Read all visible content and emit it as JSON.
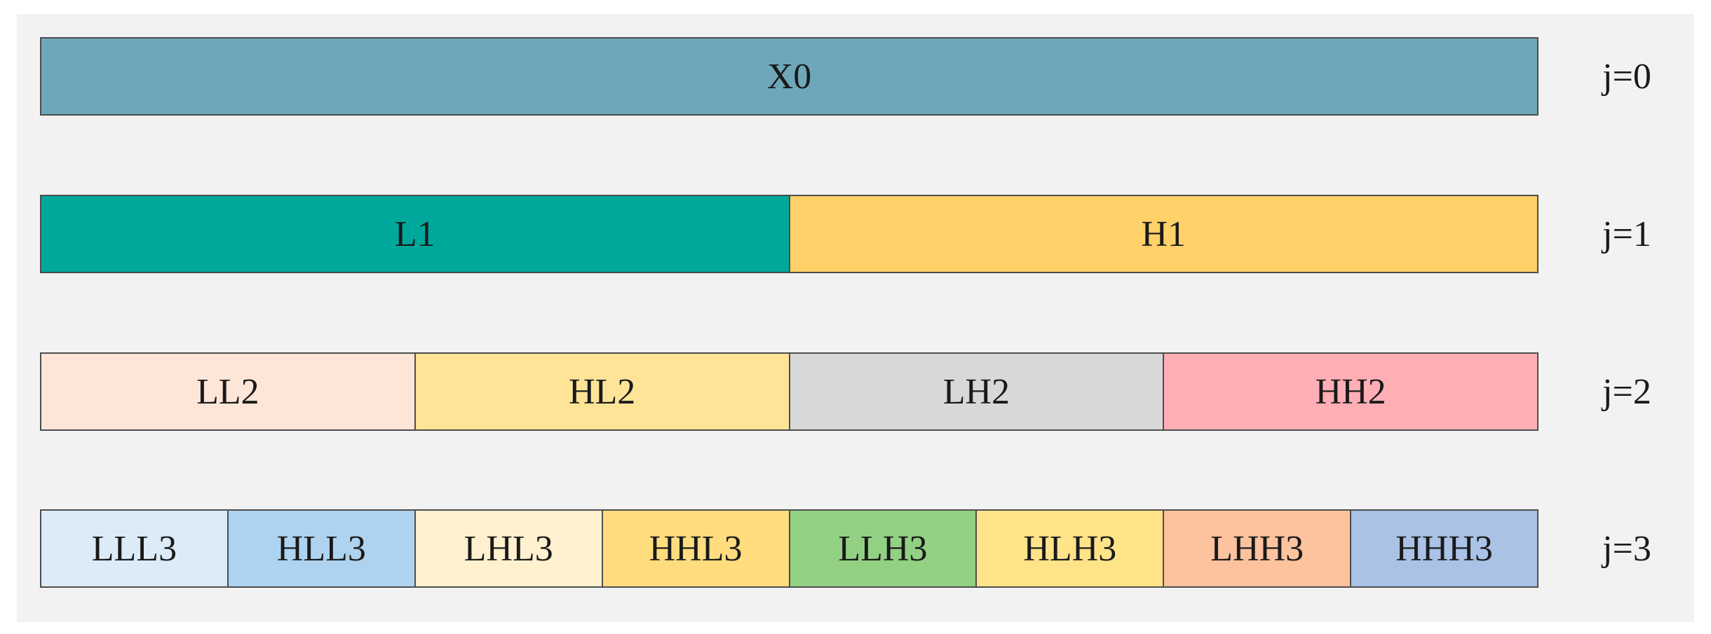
{
  "levels": [
    {
      "label": "j=0",
      "segments": [
        {
          "text": "X0",
          "color": "#6fa7ba"
        }
      ]
    },
    {
      "label": "j=1",
      "segments": [
        {
          "text": "L1",
          "color": "#00a89b"
        },
        {
          "text": "H1",
          "color": "#ffd168"
        }
      ]
    },
    {
      "label": "j=2",
      "segments": [
        {
          "text": "LL2",
          "color": "#fde5d7"
        },
        {
          "text": "HL2",
          "color": "#ffe498"
        },
        {
          "text": "LH2",
          "color": "#d8d8d8"
        },
        {
          "text": "HH2",
          "color": "#ffaeb5"
        }
      ]
    },
    {
      "label": "j=3",
      "segments": [
        {
          "text": "LLL3",
          "color": "#dcebf7"
        },
        {
          "text": "HLL3",
          "color": "#aed3f0"
        },
        {
          "text": "LHL3",
          "color": "#fff1cf"
        },
        {
          "text": "HHL3",
          "color": "#ffdc7e"
        },
        {
          "text": "LLH3",
          "color": "#92d184"
        },
        {
          "text": "HLH3",
          "color": "#ffe389"
        },
        {
          "text": "LHH3",
          "color": "#fdc29e"
        },
        {
          "text": "HHH3",
          "color": "#a9c2e6"
        }
      ]
    }
  ]
}
